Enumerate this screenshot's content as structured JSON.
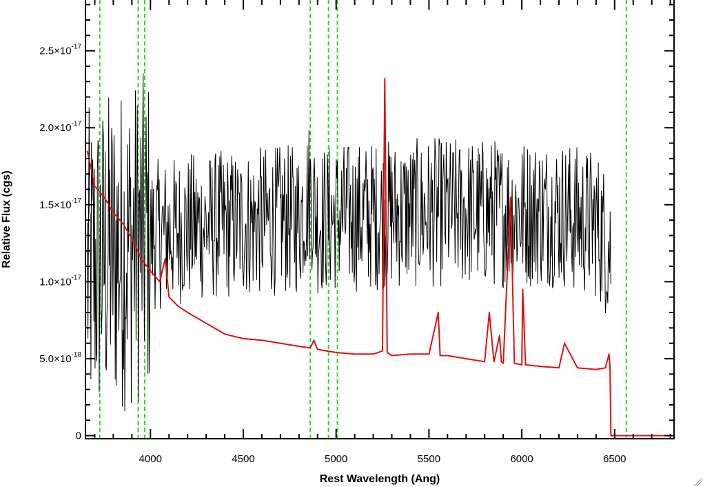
{
  "chart_data": {
    "type": "line",
    "title": "",
    "xlabel": "Rest Wavelength (Ang)",
    "ylabel": "Relative Flux (cgs)",
    "xlim": [
      3650,
      6820
    ],
    "ylim": [
      -2e-19,
      2.83e-17
    ],
    "x_ticks": [
      {
        "value": 4000,
        "label": "4000"
      },
      {
        "value": 4500,
        "label": "4500"
      },
      {
        "value": 5000,
        "label": "5000"
      },
      {
        "value": 5500,
        "label": "5500"
      },
      {
        "value": 6000,
        "label": "6000"
      },
      {
        "value": 6500,
        "label": "6500"
      }
    ],
    "y_ticks": [
      {
        "value": 0,
        "label": "0"
      },
      {
        "value": 5e-18,
        "mantissa": "5.0×10",
        "exponent": "-18"
      },
      {
        "value": 1e-17,
        "mantissa": "1.0×10",
        "exponent": "-17"
      },
      {
        "value": 1.5e-17,
        "mantissa": "1.5×10",
        "exponent": "-17"
      },
      {
        "value": 2e-17,
        "mantissa": "2.0×10",
        "exponent": "-17"
      },
      {
        "value": 2.5e-17,
        "mantissa": "2.5×10",
        "exponent": "-17"
      }
    ],
    "grid": false,
    "reference_lines": {
      "orientation": "vertical",
      "style": "dashed",
      "color": "#22dd22",
      "x": [
        3727,
        3934,
        3969,
        4861,
        4959,
        5007,
        6563
      ]
    },
    "series": [
      {
        "color": "#000000",
        "style": "noisy-line",
        "x": [
          3660,
          3700,
          3750,
          3800,
          3850,
          3900,
          3950,
          4000,
          4100,
          4200,
          4300,
          4400,
          4500,
          4600,
          4700,
          4800,
          4861,
          4900,
          5000,
          5100,
          5200,
          5300,
          5400,
          5500,
          5600,
          5700,
          5800,
          5900,
          6000,
          6100,
          6200,
          6300,
          6400,
          6480
        ],
        "y": [
          1.05e-17,
          1.1e-17,
          1.15e-17,
          1.2e-17,
          1.22e-17,
          1.25e-17,
          1.28e-17,
          1.3e-17,
          1.32e-17,
          1.35e-17,
          1.36e-17,
          1.37e-17,
          1.38e-17,
          1.39e-17,
          1.4e-17,
          1.4e-17,
          1.6e-17,
          1.4e-17,
          1.42e-17,
          1.42e-17,
          1.43e-17,
          1.44e-17,
          1.44e-17,
          1.45e-17,
          1.45e-17,
          1.45e-17,
          1.45e-17,
          1.45e-17,
          1.45e-17,
          1.45e-17,
          1.45e-17,
          1.4e-17,
          1.38e-17,
          1.2e-17
        ],
        "scatter_amplitude": 3.5e-18
      },
      {
        "color": "#dd1111",
        "style": "line",
        "x": [
          3660,
          3700,
          3750,
          3800,
          3850,
          3900,
          3950,
          4000,
          4050,
          4080,
          4100,
          4150,
          4200,
          4300,
          4400,
          4500,
          4600,
          4700,
          4800,
          4861,
          4880,
          4900,
          5000,
          5100,
          5200,
          5250,
          5262,
          5275,
          5300,
          5400,
          5500,
          5550,
          5560,
          5600,
          5700,
          5800,
          5825,
          5850,
          5880,
          5890,
          5900,
          5940,
          5960,
          6000,
          6005,
          6020,
          6100,
          6200,
          6230,
          6300,
          6400,
          6450,
          6470,
          6475,
          6480,
          6820
        ],
        "y": [
          1.85e-17,
          1.62e-17,
          1.55e-17,
          1.45e-17,
          1.38e-17,
          1.28e-17,
          1.15e-17,
          1.07e-17,
          1e-17,
          1.15e-17,
          9e-18,
          8.4e-18,
          8e-18,
          7.3e-18,
          6.6e-18,
          6.3e-18,
          6.2e-18,
          6e-18,
          5.8e-18,
          5.7e-18,
          6.2e-18,
          5.6e-18,
          5.4e-18,
          5.3e-18,
          5.3e-18,
          5.5e-18,
          2.32e-17,
          5.4e-18,
          5.2e-18,
          5.3e-18,
          5.3e-18,
          8e-18,
          5.2e-18,
          5.2e-18,
          5e-18,
          4.8e-18,
          8e-18,
          4.8e-18,
          6.5e-18,
          4.8e-18,
          4.7e-18,
          1.55e-17,
          4.7e-18,
          4.6e-18,
          9.5e-18,
          4.6e-18,
          4.5e-18,
          4.4e-18,
          6e-18,
          4.4e-18,
          4.3e-18,
          4.4e-18,
          5.3e-18,
          4.4e-18,
          0.0,
          0.0
        ]
      }
    ]
  }
}
